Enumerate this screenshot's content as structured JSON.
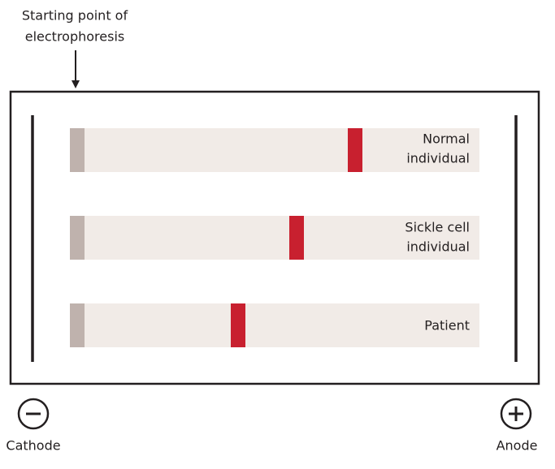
{
  "start_label": {
    "lines": [
      "Starting point of",
      "electrophoresis"
    ]
  },
  "lanes": [
    {
      "label_lines": [
        "Normal",
        "individual"
      ]
    },
    {
      "label_lines": [
        "Sickle cell",
        "individual"
      ]
    },
    {
      "label_lines": [
        "Patient"
      ]
    }
  ],
  "cathode": {
    "label": "Cathode"
  },
  "anode": {
    "label": "Anode"
  }
}
